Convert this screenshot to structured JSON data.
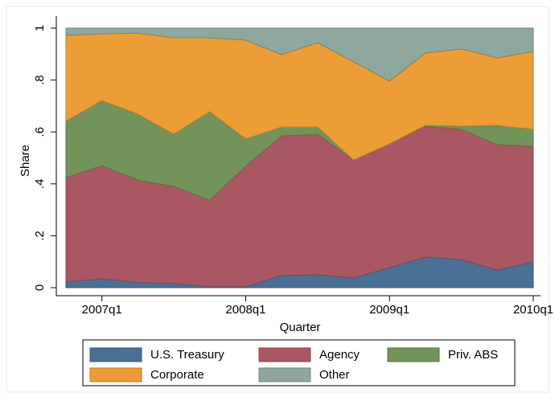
{
  "chart_data": {
    "type": "stacked_area",
    "x_label": "Quarter",
    "y_label": "Share",
    "categories": [
      null,
      "2007q1",
      null,
      null,
      null,
      "2008q1",
      null,
      null,
      null,
      "2009q1",
      null,
      null,
      null,
      "2010q1"
    ],
    "ylim": [
      0,
      1
    ],
    "yticks": [
      0,
      {
        "value": 0.2,
        "label": ".2"
      },
      {
        "value": 0.4,
        "label": ".4"
      },
      {
        "value": 0.6,
        "label": ".6"
      },
      {
        "value": 0.8,
        "label": ".8"
      },
      1
    ],
    "series": [
      {
        "name": "U.S. Treasury",
        "color": "#4a6f94",
        "values": [
          0.022,
          0.034,
          0.02,
          0.016,
          0.004,
          0.004,
          0.047,
          0.05,
          0.037,
          0.077,
          0.118,
          0.108,
          0.068,
          0.099
        ]
      },
      {
        "name": "Agency",
        "color": "#a85763",
        "values": [
          0.402,
          0.436,
          0.395,
          0.374,
          0.333,
          0.464,
          0.538,
          0.541,
          0.455,
          0.477,
          0.504,
          0.502,
          0.483,
          0.446
        ]
      },
      {
        "name": "Priv. ABS",
        "color": "#72935a",
        "values": [
          0.217,
          0.251,
          0.254,
          0.201,
          0.341,
          0.105,
          0.034,
          0.028,
          0,
          0,
          0.003,
          0.012,
          0.074,
          0.065
        ]
      },
      {
        "name": "Corporate",
        "color": "#ec9d35",
        "values": [
          0.331,
          0.257,
          0.312,
          0.372,
          0.285,
          0.381,
          0.279,
          0.325,
          0.378,
          0.242,
          0.279,
          0.298,
          0.26,
          0.3
        ]
      },
      {
        "name": "Other",
        "color": "#8fa89e",
        "values": [
          0.028,
          0.022,
          0.019,
          0.037,
          0.037,
          0.046,
          0.102,
          0.056,
          0.13,
          0.204,
          0.096,
          0.08,
          0.115,
          0.09
        ]
      }
    ]
  }
}
